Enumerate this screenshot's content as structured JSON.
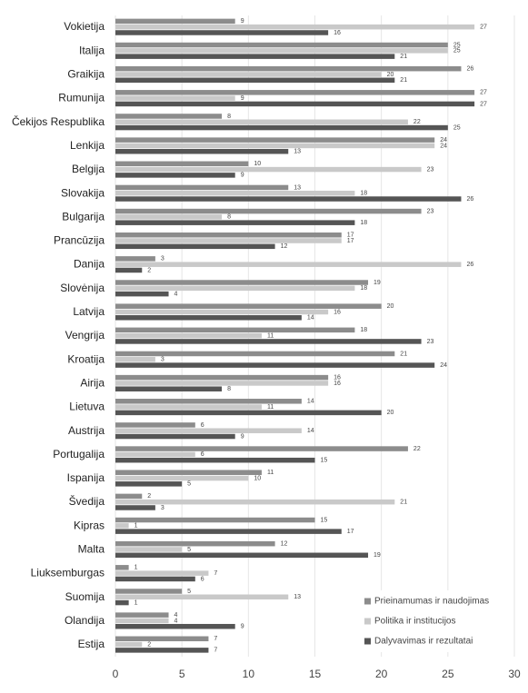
{
  "chart_data": {
    "type": "bar",
    "orientation": "horizontal",
    "categories": [
      "Vokietija",
      "Italija",
      "Graikija",
      "Rumunija",
      "Čekijos Respublika",
      "Lenkija",
      "Belgija",
      "Slovakija",
      "Bulgarija",
      "Prancūzija",
      "Danija",
      "Slovėnija",
      "Latvija",
      "Vengrija",
      "Kroatija",
      "Airija",
      "Lietuva",
      "Austrija",
      "Portugalija",
      "Ispanija",
      "Švedija",
      "Kipras",
      "Malta",
      "Liuksemburgas",
      "Suomija",
      "Olandija",
      "Estija"
    ],
    "series": [
      {
        "name": "Prieinamumas ir naudojimas",
        "color": "#8c8c8c",
        "values": [
          9,
          25,
          26,
          27,
          8,
          24,
          10,
          13,
          23,
          17,
          3,
          19,
          20,
          18,
          21,
          16,
          14,
          6,
          22,
          11,
          2,
          15,
          12,
          1,
          5,
          4,
          7
        ]
      },
      {
        "name": "Politika ir institucijos",
        "color": "#c9c9c9",
        "values": [
          27,
          25,
          20,
          9,
          22,
          24,
          23,
          18,
          8,
          17,
          26,
          18,
          16,
          11,
          3,
          16,
          11,
          14,
          6,
          10,
          21,
          1,
          5,
          7,
          13,
          4,
          2
        ]
      },
      {
        "name": "Dalyvavimas ir rezultatai",
        "color": "#555555",
        "values": [
          16,
          21,
          21,
          27,
          25,
          13,
          9,
          26,
          18,
          12,
          2,
          4,
          14,
          23,
          24,
          8,
          20,
          9,
          15,
          5,
          3,
          17,
          19,
          6,
          1,
          9,
          7
        ]
      }
    ],
    "xlim": [
      0,
      30
    ],
    "xticks": [
      0,
      5,
      10,
      15,
      20,
      25,
      30
    ],
    "grid": true,
    "legend": "lower right"
  }
}
